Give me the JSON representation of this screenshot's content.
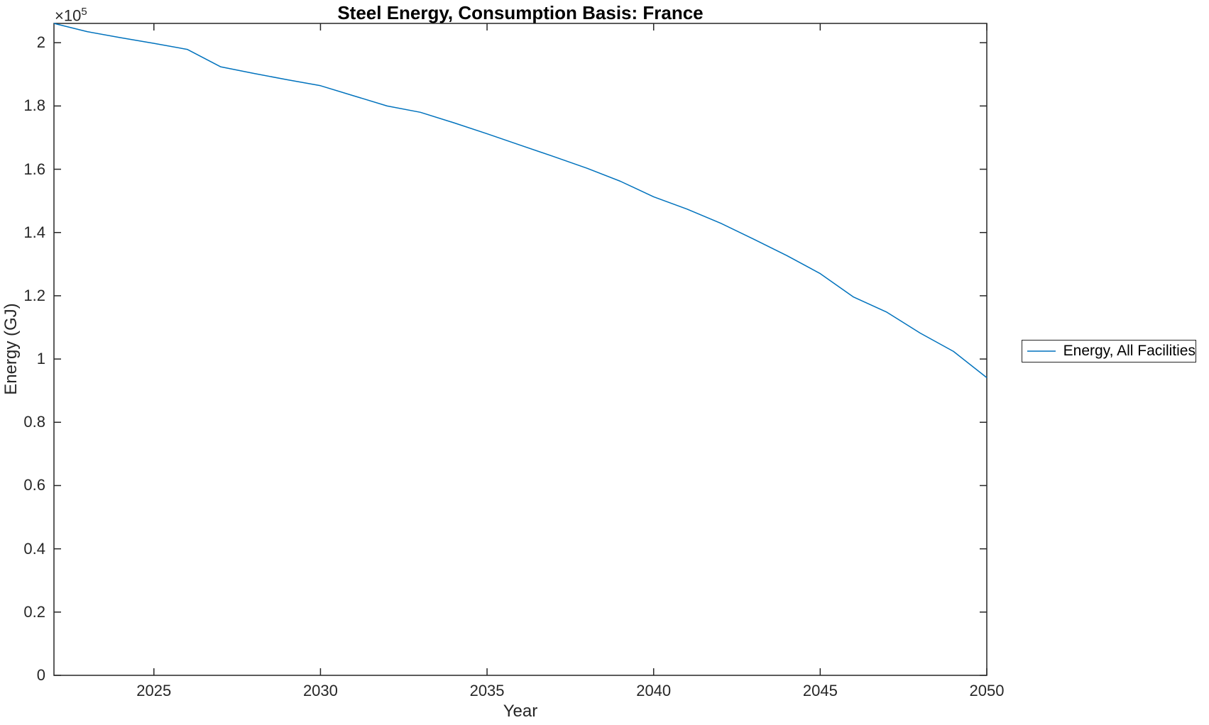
{
  "colors": {
    "line": "#0072BD",
    "axis": "#262626",
    "title": "#000000",
    "background": "#ffffff"
  },
  "chart_data": {
    "type": "line",
    "title": "Steel Energy, Consumption Basis: France",
    "xlabel": "Year",
    "ylabel": "Energy (GJ)",
    "y_exponent_base": "×10",
    "y_exponent_power": "5",
    "grid": false,
    "box": true,
    "xlim": [
      2022,
      2050
    ],
    "ylim": [
      0,
      206100
    ],
    "xticks": [
      2025,
      2030,
      2035,
      2040,
      2045,
      2050
    ],
    "xtick_labels": [
      "2025",
      "2030",
      "2035",
      "2040",
      "2045",
      "2050"
    ],
    "ytick_values": [
      0,
      20000,
      40000,
      60000,
      80000,
      100000,
      120000,
      140000,
      160000,
      180000,
      200000
    ],
    "ytick_labels": [
      "0",
      "0.2",
      "0.4",
      "0.6",
      "0.8",
      "1",
      "1.2",
      "1.4",
      "1.6",
      "1.8",
      "2"
    ],
    "legend": {
      "position": "east-outside",
      "entries": [
        {
          "label": "Energy, All Facilities",
          "color": "#0072BD"
        }
      ]
    },
    "x": [
      2022,
      2023,
      2024,
      2025,
      2026,
      2027,
      2028,
      2029,
      2030,
      2031,
      2032,
      2033,
      2034,
      2035,
      2036,
      2037,
      2038,
      2039,
      2040,
      2041,
      2042,
      2043,
      2044,
      2045,
      2046,
      2047,
      2048,
      2049,
      2050
    ],
    "series": [
      {
        "name": "Energy, All Facilities",
        "color": "#0072BD",
        "values": [
          206100,
          203500,
          201600,
          199800,
          197900,
          192400,
          190300,
          188300,
          186400,
          183200,
          180000,
          178000,
          174700,
          171200,
          167600,
          164000,
          160300,
          156200,
          151300,
          147400,
          143000,
          137900,
          132700,
          127000,
          119600,
          114800,
          108200,
          102400,
          94100
        ]
      }
    ]
  }
}
